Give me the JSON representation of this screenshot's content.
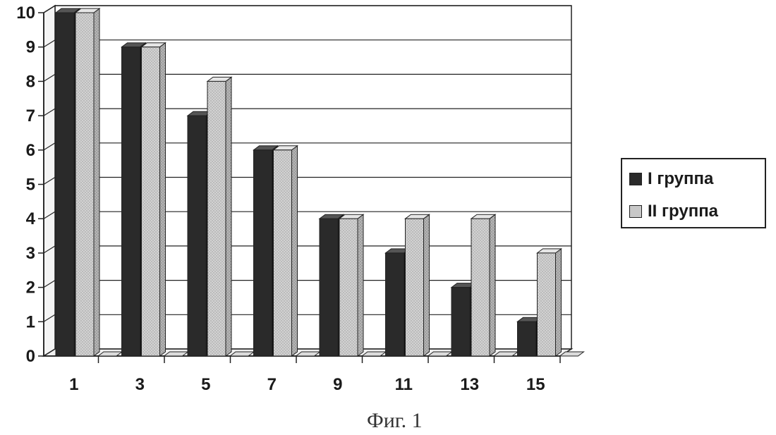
{
  "chart_data": {
    "type": "bar",
    "categories": [
      "1",
      "3",
      "5",
      "7",
      "9",
      "11",
      "13",
      "15"
    ],
    "series": [
      {
        "name": "I группа",
        "values": [
          10,
          9,
          7,
          6,
          4,
          3,
          2,
          1
        ],
        "color": "#2a2a2a"
      },
      {
        "name": "II группа",
        "values": [
          10,
          9,
          8,
          6,
          4,
          4,
          4,
          3
        ],
        "color": "#c8c8c8"
      }
    ],
    "ylim": [
      0,
      10
    ],
    "yticks": [
      "0",
      "1",
      "2",
      "3",
      "4",
      "5",
      "6",
      "7",
      "8",
      "9",
      "10"
    ],
    "grid": true,
    "legend": "right",
    "style": "3d"
  },
  "caption": "Фиг. 1"
}
